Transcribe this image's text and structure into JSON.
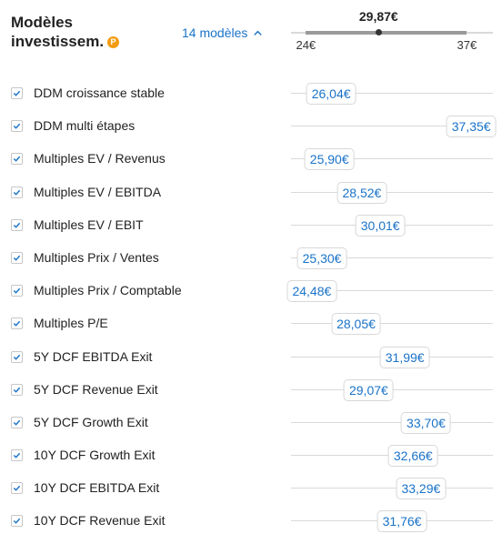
{
  "header": {
    "title_line1": "Modèles",
    "title_line2": "investissem.",
    "pro_badge": "P",
    "models_count_label": "14 modèles",
    "toggle_icon": "chevron-up-icon",
    "accent_color": "#1a73c8",
    "badge_color": "#f39c12"
  },
  "range": {
    "current": "29,87€",
    "min_label": "24€",
    "max_label": "37€",
    "min": 24,
    "max": 37,
    "current_value": 29.87
  },
  "models": [
    {
      "label": "DDM croissance stable",
      "value": "26,04€",
      "num": 26.04,
      "checked": true
    },
    {
      "label": "DDM multi étapes",
      "value": "37,35€",
      "num": 37.35,
      "checked": true
    },
    {
      "label": "Multiples EV / Revenus",
      "value": "25,90€",
      "num": 25.9,
      "checked": true
    },
    {
      "label": "Multiples EV / EBITDA",
      "value": "28,52€",
      "num": 28.52,
      "checked": true
    },
    {
      "label": "Multiples EV / EBIT",
      "value": "30,01€",
      "num": 30.01,
      "checked": true
    },
    {
      "label": "Multiples Prix / Ventes",
      "value": "25,30€",
      "num": 25.3,
      "checked": true
    },
    {
      "label": "Multiples Prix / Comptable",
      "value": "24,48€",
      "num": 24.48,
      "checked": true
    },
    {
      "label": "Multiples P/E",
      "value": "28,05€",
      "num": 28.05,
      "checked": true
    },
    {
      "label": "5Y DCF EBITDA Exit",
      "value": "31,99€",
      "num": 31.99,
      "checked": true
    },
    {
      "label": "5Y DCF Revenue Exit",
      "value": "29,07€",
      "num": 29.07,
      "checked": true
    },
    {
      "label": "5Y DCF Growth Exit",
      "value": "33,70€",
      "num": 33.7,
      "checked": true
    },
    {
      "label": "10Y DCF Growth Exit",
      "value": "32,66€",
      "num": 32.66,
      "checked": true
    },
    {
      "label": "10Y DCF EBITDA Exit",
      "value": "33,29€",
      "num": 33.29,
      "checked": true
    },
    {
      "label": "10Y DCF Revenue Exit",
      "value": "31,76€",
      "num": 31.76,
      "checked": true
    }
  ]
}
